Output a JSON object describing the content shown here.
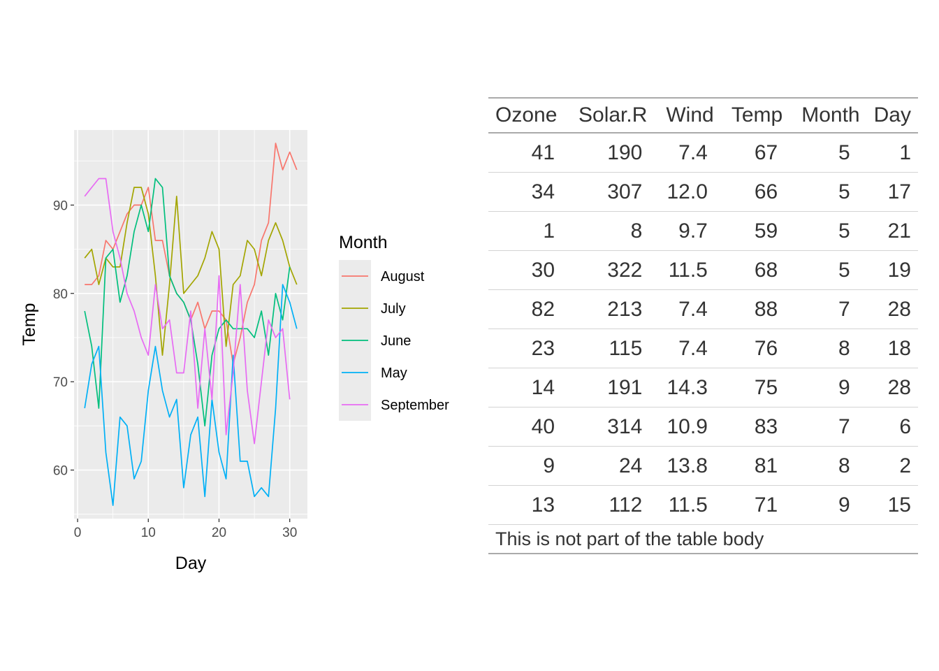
{
  "chart_data": {
    "type": "line",
    "xlabel": "Day",
    "ylabel": "Temp",
    "xlim": [
      -0.5,
      32.5
    ],
    "ylim": [
      54.5,
      98.5
    ],
    "xticks": [
      0,
      10,
      20,
      30
    ],
    "yticks": [
      60,
      70,
      80,
      90
    ],
    "grid": true,
    "legend": {
      "title": "Month",
      "position": "right"
    },
    "series": [
      {
        "name": "August",
        "color": "#F8766D",
        "x": [
          1,
          2,
          3,
          4,
          5,
          6,
          7,
          8,
          9,
          10,
          11,
          12,
          13,
          14,
          15,
          16,
          17,
          18,
          19,
          20,
          21,
          22,
          23,
          24,
          25,
          26,
          27,
          28,
          29,
          30,
          31
        ],
        "y": [
          81,
          81,
          82,
          86,
          85,
          87,
          89,
          90,
          90,
          92,
          86,
          86,
          82,
          80,
          79,
          77,
          79,
          76,
          78,
          78,
          77,
          72,
          75,
          79,
          81,
          86,
          88,
          97,
          94,
          96,
          94
        ]
      },
      {
        "name": "July",
        "color": "#A3A500",
        "x": [
          1,
          2,
          3,
          4,
          5,
          6,
          7,
          8,
          9,
          10,
          11,
          12,
          13,
          14,
          15,
          16,
          17,
          18,
          19,
          20,
          21,
          22,
          23,
          24,
          25,
          26,
          27,
          28,
          29,
          30,
          31
        ],
        "y": [
          84,
          85,
          81,
          84,
          83,
          83,
          88,
          92,
          92,
          89,
          82,
          73,
          81,
          91,
          80,
          81,
          82,
          84,
          87,
          85,
          74,
          81,
          82,
          86,
          85,
          82,
          86,
          88,
          86,
          83,
          81
        ]
      },
      {
        "name": "June",
        "color": "#00BF7D",
        "x": [
          1,
          2,
          3,
          4,
          5,
          6,
          7,
          8,
          9,
          10,
          11,
          12,
          13,
          14,
          15,
          16,
          17,
          18,
          19,
          20,
          21,
          22,
          23,
          24,
          25,
          26,
          27,
          28,
          29,
          30
        ],
        "y": [
          78,
          74,
          67,
          84,
          85,
          79,
          82,
          87,
          90,
          87,
          93,
          92,
          82,
          80,
          79,
          77,
          72,
          65,
          73,
          76,
          77,
          76,
          76,
          76,
          75,
          78,
          73,
          80,
          77,
          83
        ]
      },
      {
        "name": "May",
        "color": "#00B0F6",
        "x": [
          1,
          2,
          3,
          4,
          5,
          6,
          7,
          8,
          9,
          10,
          11,
          12,
          13,
          14,
          15,
          16,
          17,
          18,
          19,
          20,
          21,
          22,
          23,
          24,
          25,
          26,
          27,
          28,
          29,
          30,
          31
        ],
        "y": [
          67,
          72,
          74,
          62,
          56,
          66,
          65,
          59,
          61,
          69,
          74,
          69,
          66,
          68,
          58,
          64,
          66,
          57,
          68,
          62,
          59,
          73,
          61,
          61,
          57,
          58,
          57,
          67,
          81,
          79,
          76
        ]
      },
      {
        "name": "September",
        "color": "#E76BF3",
        "x": [
          1,
          2,
          3,
          4,
          5,
          6,
          7,
          8,
          9,
          10,
          11,
          12,
          13,
          14,
          15,
          16,
          17,
          18,
          19,
          20,
          21,
          22,
          23,
          24,
          25,
          26,
          27,
          28,
          29,
          30
        ],
        "y": [
          91,
          92,
          93,
          93,
          87,
          84,
          80,
          78,
          75,
          73,
          81,
          76,
          77,
          71,
          71,
          78,
          67,
          76,
          68,
          82,
          64,
          71,
          81,
          69,
          63,
          70,
          77,
          75,
          76,
          68
        ]
      }
    ]
  },
  "table": {
    "headers": [
      "Ozone",
      "Solar.R",
      "Wind",
      "Temp",
      "Month",
      "Day"
    ],
    "rows": [
      [
        "41",
        "190",
        "7.4",
        "67",
        "5",
        "1"
      ],
      [
        "34",
        "307",
        "12.0",
        "66",
        "5",
        "17"
      ],
      [
        "1",
        "8",
        "9.7",
        "59",
        "5",
        "21"
      ],
      [
        "30",
        "322",
        "11.5",
        "68",
        "5",
        "19"
      ],
      [
        "82",
        "213",
        "7.4",
        "88",
        "7",
        "28"
      ],
      [
        "23",
        "115",
        "7.4",
        "76",
        "8",
        "18"
      ],
      [
        "14",
        "191",
        "14.3",
        "75",
        "9",
        "28"
      ],
      [
        "40",
        "314",
        "10.9",
        "83",
        "7",
        "6"
      ],
      [
        "9",
        "24",
        "13.8",
        "81",
        "8",
        "2"
      ],
      [
        "13",
        "112",
        "11.5",
        "71",
        "9",
        "15"
      ]
    ],
    "footnote": "This is not part of the table body"
  }
}
